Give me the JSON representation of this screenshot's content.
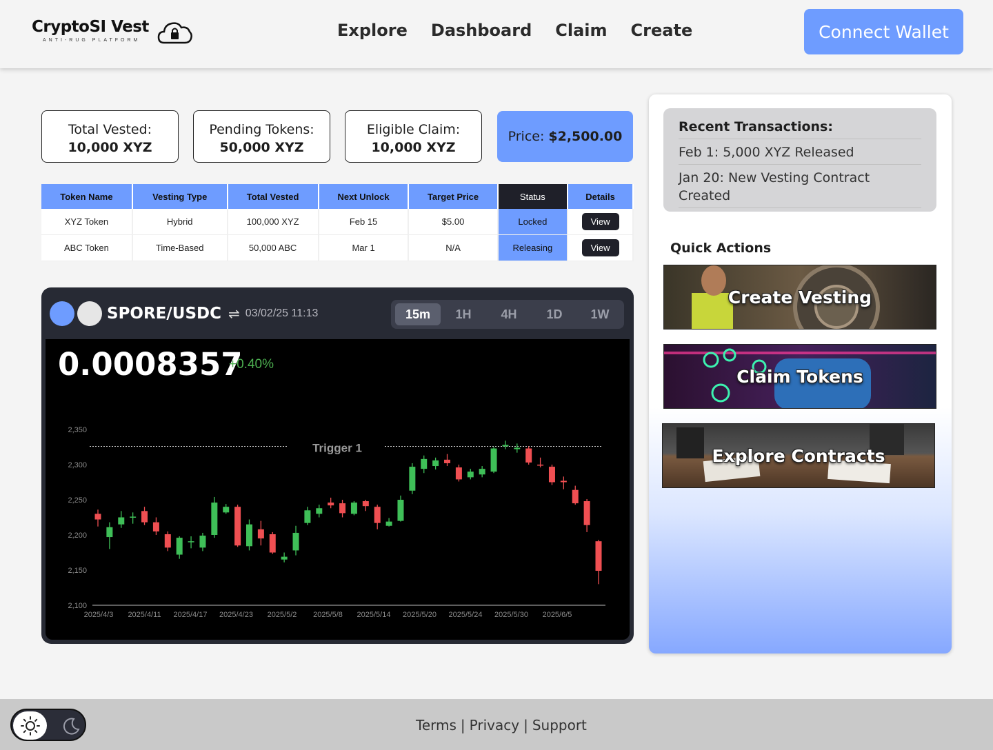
{
  "header": {
    "logo_title": "CryptoSI Vest",
    "logo_subtitle": "ANTI-RUG PLATFORM",
    "nav": [
      "Explore",
      "Dashboard",
      "Claim",
      "Create"
    ],
    "connect_label": "Connect Wallet"
  },
  "stats": {
    "total_vested_label": "Total Vested:",
    "total_vested_value": "10,000 XYZ",
    "pending_label": "Pending Tokens:",
    "pending_value": "50,000 XYZ",
    "eligible_label": "Eligible Claim:",
    "eligible_value": "10,000 XYZ",
    "price_label": "Price:",
    "price_value": "$2,500.00"
  },
  "table": {
    "headers": [
      "Token Name",
      "Vesting Type",
      "Total Vested",
      "Next Unlock",
      "Target Price",
      "Status",
      "Details"
    ],
    "rows": [
      [
        "XYZ Token",
        "Hybrid",
        "100,000 XYZ",
        "Feb 15",
        "$5.00",
        "Locked",
        "View"
      ],
      [
        "ABC Token",
        "Time-Based",
        "50,000 ABC",
        "Mar 1",
        "N/A",
        "Releasing",
        "View"
      ]
    ]
  },
  "chart_widget": {
    "pair": "SPORE/USDC",
    "datetime": "03/02/25 11:13",
    "timeframes": [
      "15m",
      "1H",
      "4H",
      "1D",
      "1W"
    ],
    "active_timeframe": "15m",
    "price": "0.0008357",
    "change": "+0.40%",
    "trigger_label": "Trigger 1"
  },
  "chart_data": {
    "type": "candlestick",
    "ylim": [
      2100,
      2350
    ],
    "yticks": [
      "2,100",
      "2,150",
      "2,200",
      "2,250",
      "2,300",
      "2,350"
    ],
    "xticks": [
      "2025/4/3",
      "2025/4/11",
      "2025/4/17",
      "2025/4/23",
      "2025/5/2",
      "2025/5/8",
      "2025/5/14",
      "2025/5/20",
      "2025/5/24",
      "2025/5/30",
      "2025/6/5"
    ],
    "trigger": 2326,
    "candles": [
      {
        "o": 2230,
        "c": 2222,
        "h": 2236,
        "l": 2212
      },
      {
        "o": 2197,
        "c": 2211,
        "h": 2218,
        "l": 2180
      },
      {
        "o": 2215,
        "c": 2225,
        "h": 2234,
        "l": 2210
      },
      {
        "o": 2225,
        "c": 2226,
        "h": 2232,
        "l": 2216
      },
      {
        "o": 2234,
        "c": 2218,
        "h": 2240,
        "l": 2214
      },
      {
        "o": 2218,
        "c": 2205,
        "h": 2225,
        "l": 2200
      },
      {
        "o": 2201,
        "c": 2182,
        "h": 2205,
        "l": 2177
      },
      {
        "o": 2172,
        "c": 2196,
        "h": 2198,
        "l": 2166
      },
      {
        "o": 2190,
        "c": 2191,
        "h": 2198,
        "l": 2181
      },
      {
        "o": 2182,
        "c": 2199,
        "h": 2203,
        "l": 2177
      },
      {
        "o": 2200,
        "c": 2246,
        "h": 2254,
        "l": 2196
      },
      {
        "o": 2232,
        "c": 2240,
        "h": 2244,
        "l": 2230
      },
      {
        "o": 2240,
        "c": 2185,
        "h": 2243,
        "l": 2183
      },
      {
        "o": 2184,
        "c": 2215,
        "h": 2222,
        "l": 2178
      },
      {
        "o": 2208,
        "c": 2195,
        "h": 2220,
        "l": 2185
      },
      {
        "o": 2201,
        "c": 2175,
        "h": 2204,
        "l": 2173
      },
      {
        "o": 2165,
        "c": 2169,
        "h": 2175,
        "l": 2161
      },
      {
        "o": 2178,
        "c": 2203,
        "h": 2213,
        "l": 2171
      },
      {
        "o": 2217,
        "c": 2235,
        "h": 2240,
        "l": 2214
      },
      {
        "o": 2230,
        "c": 2238,
        "h": 2243,
        "l": 2225
      },
      {
        "o": 2246,
        "c": 2242,
        "h": 2253,
        "l": 2238
      },
      {
        "o": 2245,
        "c": 2231,
        "h": 2250,
        "l": 2225
      },
      {
        "o": 2230,
        "c": 2246,
        "h": 2248,
        "l": 2228
      },
      {
        "o": 2248,
        "c": 2241,
        "h": 2250,
        "l": 2234
      },
      {
        "o": 2240,
        "c": 2217,
        "h": 2243,
        "l": 2208
      },
      {
        "o": 2213,
        "c": 2219,
        "h": 2224,
        "l": 2212
      },
      {
        "o": 2220,
        "c": 2250,
        "h": 2256,
        "l": 2219
      },
      {
        "o": 2263,
        "c": 2297,
        "h": 2302,
        "l": 2258
      },
      {
        "o": 2294,
        "c": 2308,
        "h": 2313,
        "l": 2288
      },
      {
        "o": 2298,
        "c": 2306,
        "h": 2310,
        "l": 2293
      },
      {
        "o": 2307,
        "c": 2302,
        "h": 2315,
        "l": 2298
      },
      {
        "o": 2296,
        "c": 2279,
        "h": 2300,
        "l": 2276
      },
      {
        "o": 2282,
        "c": 2290,
        "h": 2294,
        "l": 2279
      },
      {
        "o": 2286,
        "c": 2294,
        "h": 2298,
        "l": 2282
      },
      {
        "o": 2290,
        "c": 2323,
        "h": 2325,
        "l": 2288
      },
      {
        "o": 2326,
        "c": 2328,
        "h": 2334,
        "l": 2322
      },
      {
        "o": 2322,
        "c": 2324,
        "h": 2330,
        "l": 2317
      },
      {
        "o": 2323,
        "c": 2303,
        "h": 2326,
        "l": 2300
      },
      {
        "o": 2300,
        "c": 2299,
        "h": 2310,
        "l": 2296
      },
      {
        "o": 2297,
        "c": 2275,
        "h": 2300,
        "l": 2271
      },
      {
        "o": 2277,
        "c": 2275,
        "h": 2283,
        "l": 2265
      },
      {
        "o": 2264,
        "c": 2245,
        "h": 2270,
        "l": 2243
      },
      {
        "o": 2248,
        "c": 2214,
        "h": 2251,
        "l": 2204
      },
      {
        "o": 2191,
        "c": 2149,
        "h": 2193,
        "l": 2130
      }
    ]
  },
  "panel": {
    "recent_title": "Recent Transactions:",
    "transactions": [
      "Feb 1: 5,000 XYZ Released",
      "Jan 20: New Vesting Contract Created"
    ],
    "quick_actions_title": "Quick Actions",
    "actions": [
      "Create Vesting",
      "Claim Tokens",
      "Explore Contracts"
    ]
  },
  "footer": {
    "links": [
      "Terms",
      "Privacy",
      "Support"
    ],
    "separator": "|"
  },
  "colors": {
    "accent": "#6e9cff",
    "dark": "#1f2029",
    "up": "#3fbf58",
    "down": "#ef4f52"
  }
}
